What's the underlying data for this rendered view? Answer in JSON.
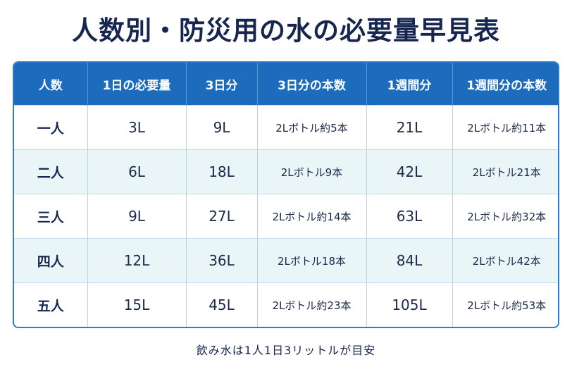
{
  "title": "人数別・防災用の水の必要量早見表",
  "table": {
    "headers": [
      "人数",
      "1日の必要量",
      "3日分",
      "3日分の本数",
      "1週間分",
      "1週間分の本数"
    ],
    "rows": [
      [
        "一人",
        "3L",
        "9L",
        "2Lボトル約5本",
        "21L",
        "2Lボトル約11本"
      ],
      [
        "二人",
        "6L",
        "18L",
        "2Lボトル9本",
        "42L",
        "2Lボトル21本"
      ],
      [
        "三人",
        "9L",
        "27L",
        "2Lボトル約14本",
        "63L",
        "2Lボトル約32本"
      ],
      [
        "四人",
        "12L",
        "36L",
        "2Lボトル18本",
        "84L",
        "2Lボトル42本"
      ],
      [
        "五人",
        "15L",
        "45L",
        "2Lボトル約23本",
        "105L",
        "2Lボトル約53本"
      ]
    ]
  },
  "footnote": "飲み水は1人1日3リットルが目安",
  "colors": {
    "header_bg": "#1d6bbd",
    "title": "#16264f",
    "stripe": "#e9f5f7",
    "border": "#2f7bc4"
  }
}
